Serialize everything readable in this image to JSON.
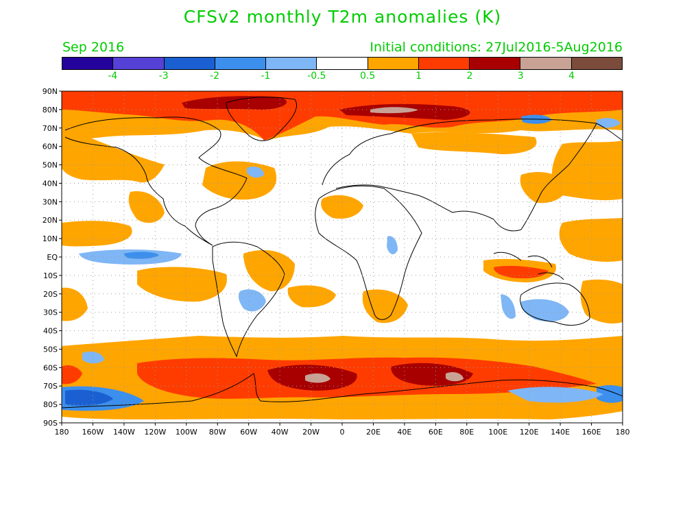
{
  "title": "CFSv2 monthly T2m anomalies (K)",
  "subtitle_left": "Sep 2016",
  "subtitle_right": "Initial conditions: 27Jul2016-5Aug2016",
  "colorbar": {
    "colors": [
      "#24029c",
      "#5641d6",
      "#1a60d2",
      "#3c8fec",
      "#7fb6f5",
      "#ffffff",
      "#ffa500",
      "#ff3c00",
      "#a80000",
      "#c9a296",
      "#7b4b3b"
    ],
    "labels": [
      "-4",
      "-3",
      "-2",
      "-1",
      "-0.5",
      "0.5",
      "1",
      "2",
      "3",
      "4"
    ]
  },
  "map": {
    "lat_labels": [
      "90N",
      "80N",
      "70N",
      "60N",
      "50N",
      "40N",
      "30N",
      "20N",
      "10N",
      "EQ",
      "10S",
      "20S",
      "30S",
      "40S",
      "50S",
      "60S",
      "70S",
      "80S",
      "90S"
    ],
    "lon_labels": [
      "180",
      "160W",
      "140W",
      "120W",
      "100W",
      "80W",
      "60W",
      "40W",
      "20W",
      "0",
      "20E",
      "40E",
      "60E",
      "80E",
      "100E",
      "120E",
      "140E",
      "160E",
      "180"
    ]
  }
}
